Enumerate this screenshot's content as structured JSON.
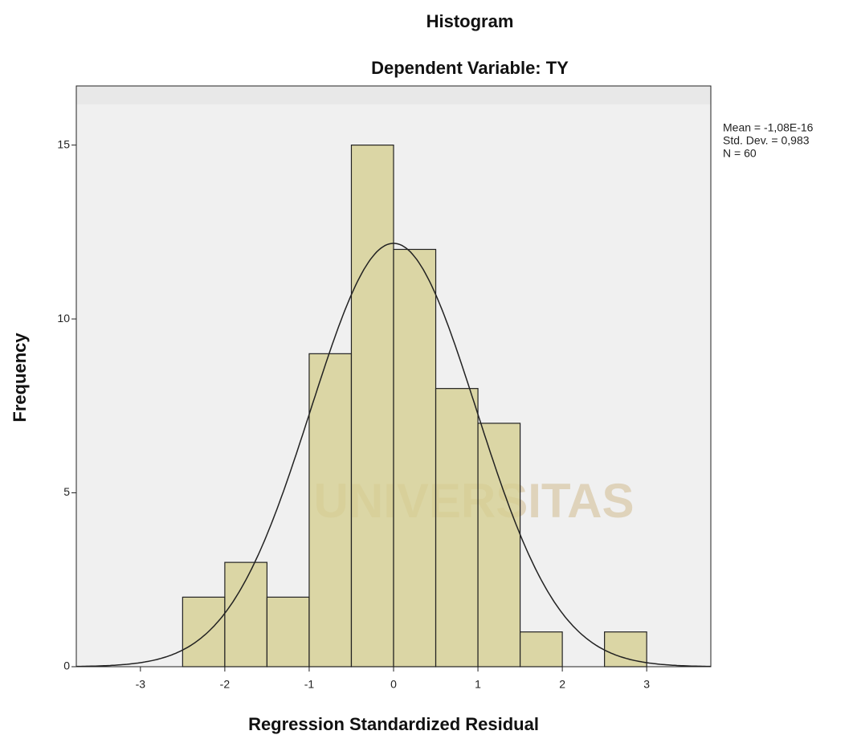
{
  "chart_data": {
    "type": "histogram",
    "title": "Histogram",
    "subtitle": "Dependent Variable: TY",
    "x_label": "Regression Standardized Residual",
    "y_label": "Frequency",
    "watermark": "UNIVERSITAS",
    "bins": [
      -2.5,
      -2,
      -1.5,
      -1,
      -0.5,
      0,
      0.5,
      1,
      1.5,
      2,
      2.5,
      3
    ],
    "values": [
      2,
      3,
      2,
      9,
      15,
      12,
      8,
      7,
      1,
      0,
      1
    ],
    "color": "#d6cf92",
    "curve_color": "#222222",
    "xlim": [
      -3.76,
      3.76
    ],
    "ylim": [
      0,
      16.7
    ],
    "xticks": [
      -3,
      -2,
      -1,
      0,
      1,
      2,
      3
    ],
    "yticks": [
      0,
      5,
      10,
      15
    ],
    "stats": [
      {
        "value": -1.08e-16,
        "label": "Mean = -1,08E-16"
      },
      {
        "value": 0.983,
        "label": "Std. Dev. = 0,983"
      },
      {
        "value": 60,
        "label": "N = 60"
      }
    ]
  }
}
